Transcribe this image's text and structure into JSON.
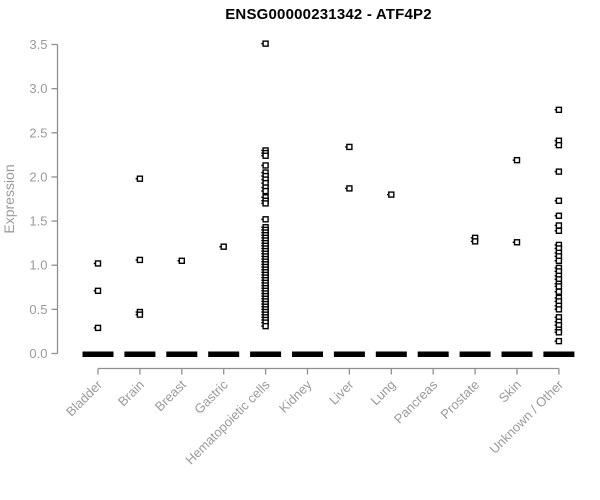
{
  "chart_data": {
    "type": "scatter",
    "subtype": "strip-plot",
    "title": "ENSG00000231342 - ATF4P2",
    "xlabel": "",
    "ylabel": "Expression",
    "ylim": [
      0.0,
      3.5
    ],
    "yticks": [
      0.0,
      0.5,
      1.0,
      1.5,
      2.0,
      2.5,
      3.0,
      3.5
    ],
    "ytick_labels": [
      "0.0",
      "0.5",
      "1.0",
      "1.5",
      "2.0",
      "2.5",
      "3.0",
      "3.5"
    ],
    "grid": "off",
    "legend": "none",
    "marker": "open-square",
    "zero_cluster_note": "every category shows a dense overlapping cluster of points at expression 0, rendered as a thick black dash",
    "categories": [
      "Bladder",
      "Brain",
      "Breast",
      "Gastric",
      "Hematopoietic cells",
      "Kidney",
      "Liver",
      "Lung",
      "Pancreas",
      "Prostate",
      "Skin",
      "Unknown / Other"
    ],
    "groups": [
      {
        "label": "Bladder",
        "zero_cluster": true,
        "values": [
          1.02,
          0.71,
          0.29
        ]
      },
      {
        "label": "Brain",
        "zero_cluster": true,
        "values": [
          1.98,
          1.06,
          0.47,
          0.44
        ]
      },
      {
        "label": "Breast",
        "zero_cluster": true,
        "values": [
          1.05
        ]
      },
      {
        "label": "Gastric",
        "zero_cluster": true,
        "values": [
          1.21
        ]
      },
      {
        "label": "Hematopoietic cells",
        "zero_cluster": true,
        "values": [
          3.51,
          2.3,
          2.27,
          2.24,
          2.13,
          2.05,
          2.01,
          1.97,
          1.93,
          1.88,
          1.84,
          1.77,
          1.73,
          1.7,
          1.52,
          1.43,
          1.4,
          1.37,
          1.34,
          1.31,
          1.28,
          1.25,
          1.22,
          1.19,
          1.16,
          1.13,
          1.1,
          1.07,
          1.04,
          1.01,
          0.98,
          0.95,
          0.92,
          0.89,
          0.86,
          0.83,
          0.8,
          0.77,
          0.74,
          0.71,
          0.68,
          0.65,
          0.62,
          0.59,
          0.56,
          0.53,
          0.5,
          0.47,
          0.44,
          0.41,
          0.38,
          0.35,
          0.31
        ]
      },
      {
        "label": "Kidney",
        "zero_cluster": true,
        "values": []
      },
      {
        "label": "Liver",
        "zero_cluster": true,
        "values": [
          2.34,
          1.87
        ]
      },
      {
        "label": "Lung",
        "zero_cluster": true,
        "values": [
          1.8
        ]
      },
      {
        "label": "Pancreas",
        "zero_cluster": true,
        "values": []
      },
      {
        "label": "Prostate",
        "zero_cluster": true,
        "values": [
          1.31,
          1.27
        ]
      },
      {
        "label": "Skin",
        "zero_cluster": true,
        "values": [
          2.19,
          1.26
        ]
      },
      {
        "label": "Unknown / Other",
        "zero_cluster": true,
        "values": [
          2.76,
          2.41,
          2.36,
          2.06,
          1.73,
          1.56,
          1.45,
          1.39,
          1.23,
          1.19,
          1.14,
          1.1,
          1.05,
          0.97,
          0.93,
          0.88,
          0.84,
          0.79,
          0.76,
          0.7,
          0.63,
          0.59,
          0.54,
          0.5,
          0.41,
          0.36,
          0.32,
          0.27,
          0.24,
          0.14
        ]
      }
    ],
    "colors": {
      "marker_stroke": "#000000",
      "marker_fill": "#ffffff",
      "zero_dash": "#000000",
      "axis_line": "#8f8f8f",
      "tick_label": "#9a9a9a",
      "axis_title": "#9a9a9a",
      "title": "#000000",
      "background": "#ffffff"
    }
  }
}
